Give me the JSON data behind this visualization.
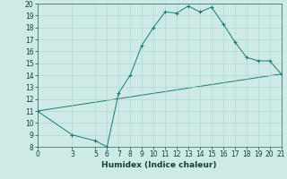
{
  "title": "",
  "xlabel": "Humidex (Indice chaleur)",
  "line1_x": [
    0,
    3,
    5,
    6,
    6,
    7,
    8,
    9,
    10,
    11,
    12,
    13,
    14,
    15,
    16,
    17,
    18,
    19,
    20,
    21
  ],
  "line1_y": [
    11,
    9,
    8.5,
    8,
    8,
    12.5,
    14,
    16.5,
    18,
    19.3,
    19.2,
    19.8,
    19.3,
    19.7,
    18.3,
    16.8,
    15.5,
    15.2,
    15.2,
    14.1
  ],
  "line2_x": [
    0,
    21
  ],
  "line2_y": [
    11,
    14.1
  ],
  "line_color": "#1a7a6e",
  "bg_color": "#ceeae6",
  "grid_color": "#b0d8d4",
  "xlim": [
    0,
    21
  ],
  "ylim": [
    8,
    20
  ],
  "xticks": [
    0,
    3,
    5,
    6,
    7,
    8,
    9,
    10,
    11,
    12,
    13,
    14,
    15,
    16,
    17,
    18,
    19,
    20,
    21
  ],
  "yticks": [
    8,
    9,
    10,
    11,
    12,
    13,
    14,
    15,
    16,
    17,
    18,
    19,
    20
  ],
  "tick_fontsize": 5.5,
  "xlabel_fontsize": 6.5
}
